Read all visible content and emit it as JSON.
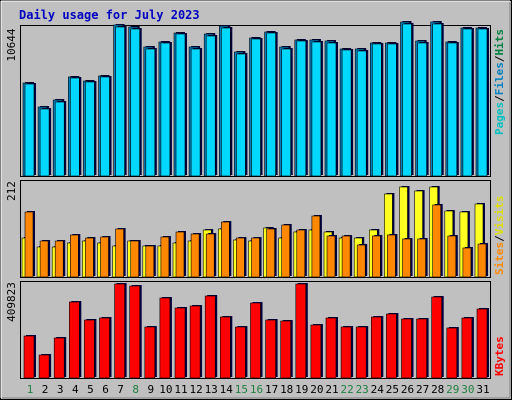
{
  "title": "Daily usage for July 2023",
  "colors": {
    "background": "#c0c0c0",
    "title": "#0000c0",
    "hits": "#00d8ff",
    "files": "#0080c0",
    "pages": "#00c0c0",
    "visits": "#ffff20",
    "sites": "#ff8800",
    "kbytes": "#ff0000",
    "weekday_label": "#000000",
    "weekend_label": "#208040"
  },
  "legend": {
    "top": {
      "pages": "Pages",
      "files": "Files",
      "hits": "Hits",
      "sep": "/"
    },
    "middle": {
      "sites": "Sites",
      "visits": "Visits",
      "sep": "/"
    },
    "bottom": {
      "kbytes": "KBytes"
    }
  },
  "chart_data": [
    {
      "type": "bar",
      "title": "Daily usage for July 2023",
      "categories": [
        "1",
        "2",
        "3",
        "4",
        "5",
        "6",
        "7",
        "8",
        "9",
        "10",
        "11",
        "12",
        "13",
        "14",
        "15",
        "16",
        "17",
        "18",
        "19",
        "20",
        "21",
        "22",
        "23",
        "24",
        "25",
        "26",
        "27",
        "28",
        "29",
        "30",
        "31"
      ],
      "weekend_days": [
        1,
        8,
        15,
        16,
        22,
        23,
        29,
        30
      ],
      "max_label": "10644",
      "ylim": [
        0,
        10644
      ],
      "series": [
        {
          "name": "Hits",
          "values": [
            6600,
            4850,
            5350,
            7050,
            6750,
            7100,
            10700,
            10600,
            9150,
            9550,
            10200,
            9150,
            10100,
            10650,
            8800,
            9850,
            10250,
            9150,
            9700,
            9650,
            9600,
            9050,
            9000,
            9500,
            9500,
            10950,
            9600,
            10950,
            9550,
            10550,
            10550
          ]
        },
        {
          "name": "Files",
          "values": [
            6700,
            4950,
            5450,
            7150,
            6850,
            7200,
            10850,
            10700,
            9250,
            9650,
            10300,
            9250,
            10200,
            10800,
            8900,
            9950,
            10350,
            9250,
            9800,
            9750,
            9700,
            9150,
            9100,
            9600,
            9600,
            11050,
            9700,
            11050,
            9650,
            10650,
            10650
          ]
        }
      ]
    },
    {
      "type": "bar",
      "categories": [
        "1",
        "2",
        "3",
        "4",
        "5",
        "6",
        "7",
        "8",
        "9",
        "10",
        "11",
        "12",
        "13",
        "14",
        "15",
        "16",
        "17",
        "18",
        "19",
        "20",
        "21",
        "22",
        "23",
        "24",
        "25",
        "26",
        "27",
        "28",
        "29",
        "30",
        "31"
      ],
      "max_label": "212",
      "ylim": [
        0,
        212
      ],
      "series": [
        {
          "name": "Visits",
          "values": [
            88,
            68,
            68,
            75,
            80,
            75,
            70,
            80,
            70,
            70,
            75,
            80,
            104,
            106,
            82,
            80,
            110,
            86,
            100,
            105,
            100,
            86,
            88,
            105,
            185,
            200,
            193,
            200,
            148,
            146,
            163
          ]
        },
        {
          "name": "Sites",
          "values": [
            145,
            80,
            80,
            93,
            88,
            90,
            108,
            80,
            70,
            90,
            100,
            96,
            96,
            122,
            88,
            87,
            108,
            116,
            105,
            136,
            91,
            91,
            72,
            91,
            93,
            85,
            85,
            160,
            91,
            65,
            74
          ]
        }
      ]
    },
    {
      "type": "bar",
      "categories": [
        "1",
        "2",
        "3",
        "4",
        "5",
        "6",
        "7",
        "8",
        "9",
        "10",
        "11",
        "12",
        "13",
        "14",
        "15",
        "16",
        "17",
        "18",
        "19",
        "20",
        "21",
        "22",
        "23",
        "24",
        "25",
        "26",
        "27",
        "28",
        "29",
        "30",
        "31"
      ],
      "max_label": "409823",
      "ylim": [
        0,
        409823
      ],
      "series": [
        {
          "name": "KBytes",
          "values": [
            180000,
            100000,
            174000,
            330000,
            250000,
            260000,
            405000,
            398000,
            220000,
            345000,
            300000,
            310000,
            355000,
            265000,
            220000,
            325000,
            250000,
            245000,
            405000,
            230000,
            260000,
            220000,
            218000,
            262000,
            278000,
            255000,
            255000,
            350000,
            215000,
            260000,
            297000
          ]
        }
      ]
    }
  ]
}
